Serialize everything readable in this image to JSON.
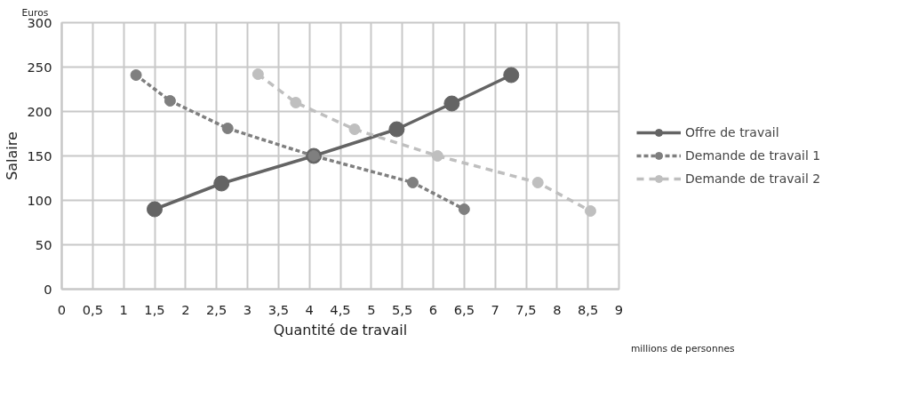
{
  "chart_data": {
    "type": "line",
    "xlabel": "Quantité de travail",
    "ylabel": "Salaire",
    "annotations": [
      "Euros",
      "millions de personnes"
    ],
    "series": [
      {
        "name": "Offre de travail",
        "color": "#646464",
        "line_style": "solid",
        "x": [
          1.5,
          2.58,
          4.07,
          5.41,
          6.3,
          7.26
        ],
        "values": [
          90,
          119,
          150,
          180,
          209,
          241
        ]
      },
      {
        "name": "Demande de travail 1",
        "color": "#7f7f7f",
        "line_style": "dotted",
        "x": [
          1.2,
          1.75,
          2.68,
          4.07,
          5.67,
          6.5
        ],
        "values": [
          241,
          212,
          181,
          150,
          120,
          90
        ]
      },
      {
        "name": "Demande de travail 2",
        "color": "#bfbfbf",
        "line_style": "dashed",
        "x": [
          3.17,
          3.78,
          4.73,
          6.07,
          7.69,
          8.54
        ],
        "values": [
          242,
          210,
          180,
          150,
          120,
          88
        ]
      }
    ],
    "marker": "circle",
    "legend": "right",
    "grid": true,
    "xlim": [
      0,
      9
    ],
    "xticks": [
      0,
      {
        "value": 0.5,
        "label": "0,5"
      },
      1,
      {
        "value": 1.5,
        "label": "1,5"
      },
      2,
      {
        "value": 2.5,
        "label": "2,5"
      },
      3,
      {
        "value": 3.5,
        "label": "3,5"
      },
      4,
      {
        "value": 4.5,
        "label": "4,5"
      },
      5,
      {
        "value": 5.5,
        "label": "5,5"
      },
      6,
      {
        "value": 6.5,
        "label": "6,5"
      },
      7,
      {
        "value": 7.5,
        "label": "7,5"
      },
      8,
      {
        "value": 8.5,
        "label": "8,5"
      },
      9
    ],
    "ylim": [
      0,
      300
    ],
    "yticks": [
      0,
      50,
      100,
      150,
      200,
      250,
      300
    ]
  }
}
